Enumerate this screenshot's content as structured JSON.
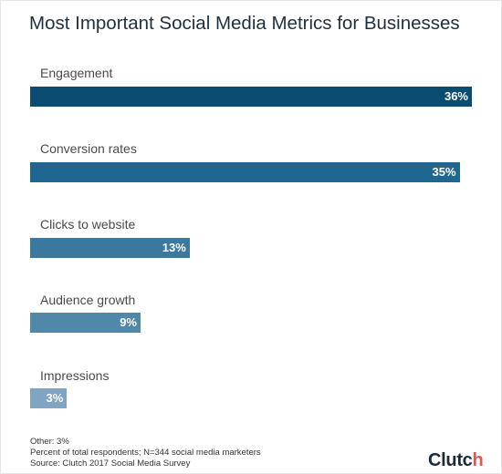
{
  "chart_data": {
    "type": "bar",
    "orientation": "horizontal",
    "title": "Most Important Social Media Metrics for Businesses",
    "categories": [
      "Engagement",
      "Conversion rates",
      "Clicks to website",
      "Audience growth",
      "Impressions"
    ],
    "values": [
      36,
      35,
      13,
      9,
      3
    ],
    "value_labels": [
      "36%",
      "35%",
      "13%",
      "9%",
      "3%"
    ],
    "colors": [
      "#0b4c72",
      "#1f6690",
      "#3a789e",
      "#5088aa",
      "#7fa5c1"
    ],
    "xlim": [
      0,
      36
    ],
    "grid": false,
    "legend": "none"
  },
  "notes": [
    "Other: 3%",
    "Percent of total respondents; N=344 social media marketers",
    "Source: Clutch 2017 Social Media Survey"
  ],
  "brand": {
    "name": "Clutch"
  }
}
